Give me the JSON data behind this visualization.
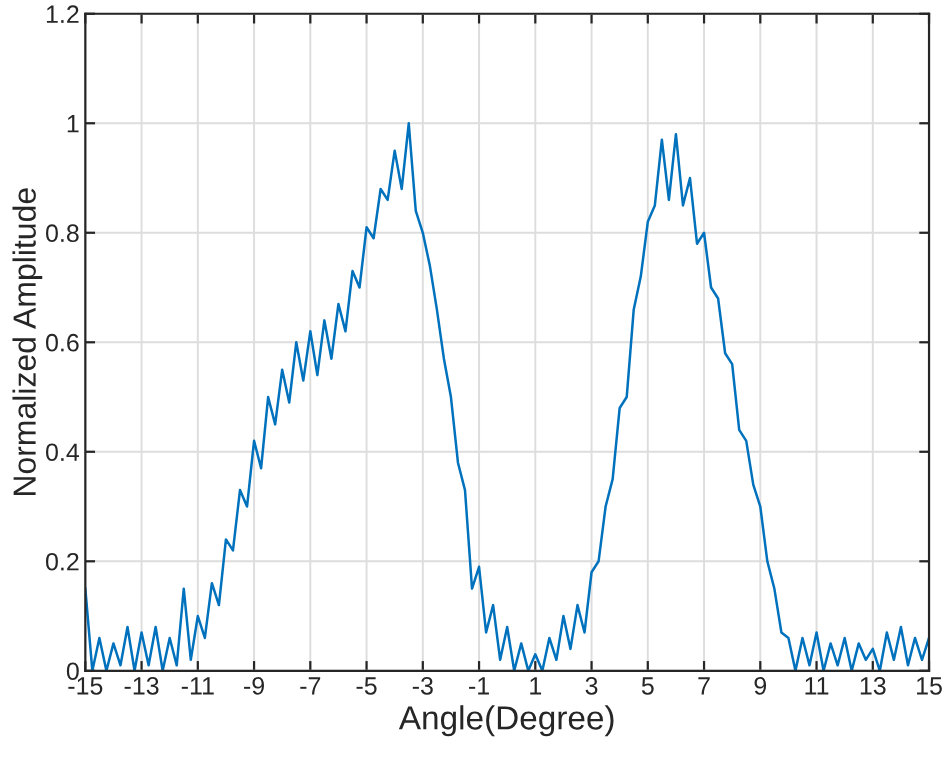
{
  "chart_data": {
    "type": "line",
    "xlabel": "Angle(Degree)",
    "ylabel": "Normalized Amplitude",
    "x": [
      -15,
      -14.75,
      -14.5,
      -14.25,
      -14,
      -13.75,
      -13.5,
      -13.25,
      -13,
      -12.75,
      -12.5,
      -12.25,
      -12,
      -11.75,
      -11.5,
      -11.25,
      -11,
      -10.75,
      -10.5,
      -10.25,
      -10,
      -9.75,
      -9.5,
      -9.25,
      -9,
      -8.75,
      -8.5,
      -8.25,
      -8,
      -7.75,
      -7.5,
      -7.25,
      -7,
      -6.75,
      -6.5,
      -6.25,
      -6,
      -5.75,
      -5.5,
      -5.25,
      -5,
      -4.75,
      -4.5,
      -4.25,
      -4,
      -3.75,
      -3.5,
      -3.25,
      -3,
      -2.75,
      -2.5,
      -2.25,
      -2,
      -1.75,
      -1.5,
      -1.25,
      -1,
      -0.75,
      -0.5,
      -0.25,
      0,
      0.25,
      0.5,
      0.75,
      1,
      1.25,
      1.5,
      1.75,
      2,
      2.25,
      2.5,
      2.75,
      3,
      3.25,
      3.5,
      3.75,
      4,
      4.25,
      4.5,
      4.75,
      5,
      5.25,
      5.5,
      5.75,
      6,
      6.25,
      6.5,
      6.75,
      7,
      7.25,
      7.5,
      7.75,
      8,
      8.25,
      8.5,
      8.75,
      9,
      9.25,
      9.5,
      9.75,
      10,
      10.25,
      10.5,
      10.75,
      11,
      11.25,
      11.5,
      11.75,
      12,
      12.25,
      12.5,
      12.75,
      13,
      13.25,
      13.5,
      13.75,
      14,
      14.25,
      14.5,
      14.75,
      15
    ],
    "series": [
      {
        "color": "#0072bd",
        "values": [
          0.15,
          0.0,
          0.06,
          0.0,
          0.05,
          0.01,
          0.08,
          0.0,
          0.07,
          0.01,
          0.08,
          0.0,
          0.06,
          0.01,
          0.15,
          0.02,
          0.1,
          0.06,
          0.16,
          0.12,
          0.24,
          0.22,
          0.33,
          0.3,
          0.42,
          0.37,
          0.5,
          0.45,
          0.55,
          0.49,
          0.6,
          0.53,
          0.62,
          0.54,
          0.64,
          0.57,
          0.67,
          0.62,
          0.73,
          0.7,
          0.81,
          0.79,
          0.88,
          0.86,
          0.95,
          0.88,
          1.0,
          0.84,
          0.8,
          0.74,
          0.66,
          0.57,
          0.5,
          0.38,
          0.33,
          0.15,
          0.19,
          0.07,
          0.12,
          0.02,
          0.08,
          0.0,
          0.05,
          0.0,
          0.03,
          0.0,
          0.06,
          0.02,
          0.1,
          0.04,
          0.12,
          0.07,
          0.18,
          0.2,
          0.3,
          0.35,
          0.48,
          0.5,
          0.66,
          0.72,
          0.82,
          0.85,
          0.97,
          0.86,
          0.98,
          0.85,
          0.9,
          0.78,
          0.8,
          0.7,
          0.68,
          0.58,
          0.56,
          0.44,
          0.42,
          0.34,
          0.3,
          0.2,
          0.15,
          0.07,
          0.06,
          0.0,
          0.06,
          0.01,
          0.07,
          0.0,
          0.05,
          0.01,
          0.06,
          0.0,
          0.05,
          0.02,
          0.04,
          0.0,
          0.07,
          0.02,
          0.08,
          0.01,
          0.06,
          0.02,
          0.06
        ]
      }
    ],
    "xlim": [
      -15,
      15
    ],
    "xticks": [
      -15,
      -13,
      -11,
      -9,
      -7,
      -5,
      -3,
      -1,
      1,
      3,
      5,
      7,
      9,
      11,
      13,
      15
    ],
    "ylim": [
      0,
      1.2
    ],
    "yticks": [
      0,
      0.2,
      0.4,
      0.6,
      0.8,
      1,
      1.2
    ],
    "grid": true,
    "line_style": "solid",
    "marker": "none"
  }
}
